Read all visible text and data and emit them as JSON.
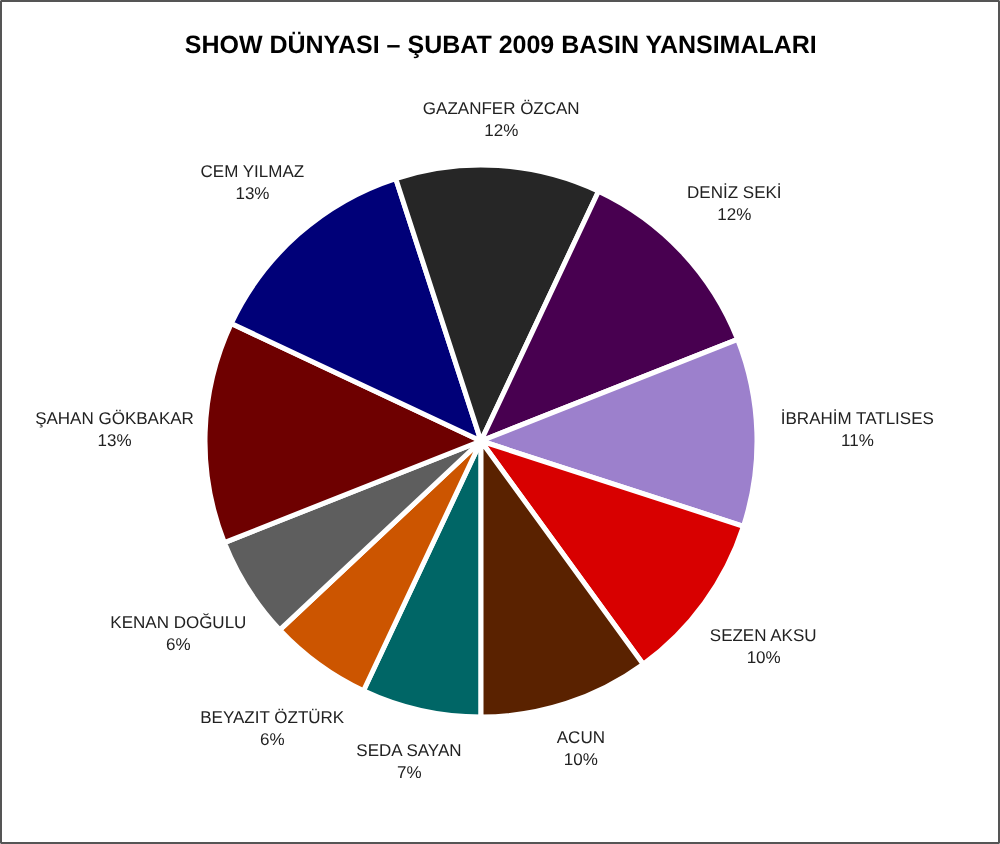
{
  "chart_data": {
    "type": "pie",
    "title": "SHOW DÜNYASI – ŞUBAT 2009 BASIN YANSIMALARI",
    "categories": [
      "SEDA SAYAN",
      "BEYAZIT ÖZTÜRK",
      "KENAN DOĞULU",
      "ŞAHAN GÖKBAKAR",
      "CEM YILMAZ",
      "GAZANFER ÖZCAN",
      "DENİZ SEKİ",
      "İBRAHİM TATLISES",
      "SEZEN AKSU",
      "ACUN"
    ],
    "values": [
      7,
      6,
      6,
      13,
      13,
      12,
      12,
      11,
      10,
      10
    ],
    "colors": [
      "#006666",
      "#cc5500",
      "#5e5e5e",
      "#6e0000",
      "#000078",
      "#262626",
      "#480050",
      "#9c80cc",
      "#d80000",
      "#5a2200"
    ],
    "value_labels": [
      "7%",
      "6%",
      "6%",
      "13%",
      "13%",
      "12%",
      "12%",
      "11%",
      "10%",
      "10%"
    ]
  }
}
